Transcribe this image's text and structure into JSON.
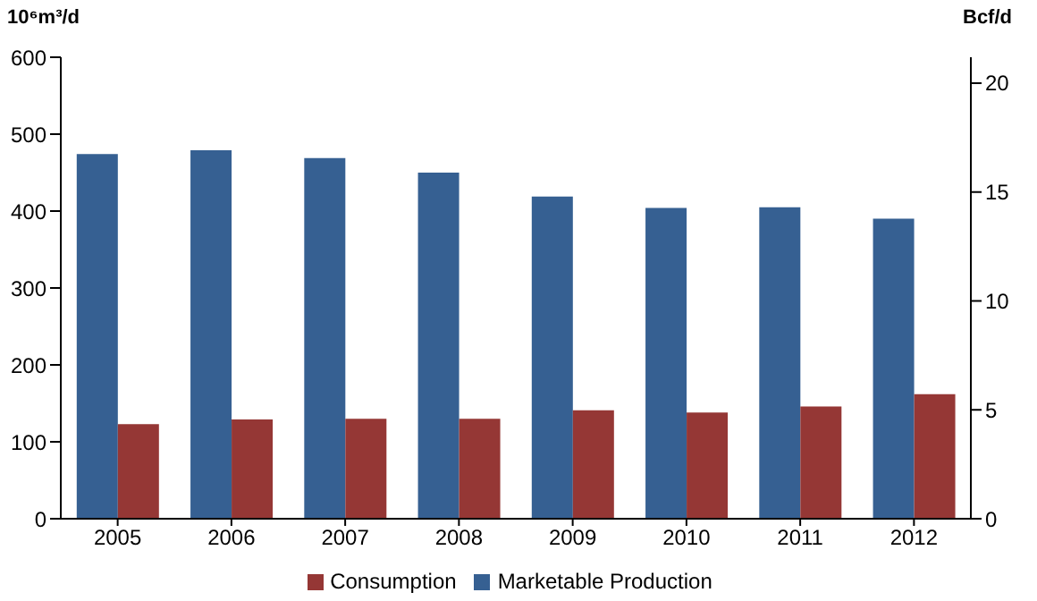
{
  "chart_data": {
    "type": "bar",
    "categories": [
      "2005",
      "2006",
      "2007",
      "2008",
      "2009",
      "2010",
      "2011",
      "2012"
    ],
    "series": [
      {
        "name": "Marketable Production",
        "color": "#366092",
        "values": [
          474,
          479,
          469,
          450,
          419,
          404,
          405,
          390
        ]
      },
      {
        "name": "Consumption",
        "color": "#953735",
        "values": [
          123,
          129,
          130,
          130,
          141,
          138,
          146,
          162
        ]
      }
    ],
    "ylabel": "10⁶m³/d",
    "y2label": "Bcf/d",
    "ylim": [
      0,
      600
    ],
    "yticks": [
      0,
      100,
      200,
      300,
      400,
      500,
      600
    ],
    "y2lim": [
      0,
      21.19
    ],
    "y2ticks": [
      0,
      5,
      10,
      15,
      20
    ],
    "grid": false,
    "legend": "bottom"
  }
}
